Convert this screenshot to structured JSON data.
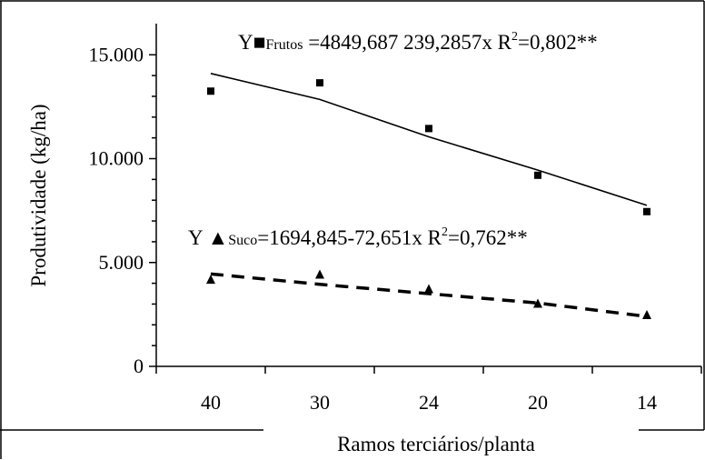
{
  "chart_data": {
    "type": "scatter",
    "xlabel": "Ramos terciários/planta",
    "ylabel": "Produtividade (kg/ha)",
    "categories": [
      "40",
      "30",
      "24",
      "20",
      "14"
    ],
    "yticks": [
      "0",
      "5.000",
      "10.000",
      "15.000"
    ],
    "ylim": [
      0,
      16500
    ],
    "grid": false,
    "series": [
      {
        "name": "Frutos",
        "marker": "square",
        "values": [
          13250,
          13650,
          11450,
          9200,
          7450
        ],
        "fit": [
          14100,
          12850,
          11050,
          9450,
          7750
        ],
        "fit_style": "solid"
      },
      {
        "name": "Suco",
        "marker": "triangle",
        "values": [
          4150,
          4400,
          3700,
          3000,
          2450
        ],
        "fit": [
          4450,
          3950,
          3500,
          3050,
          2400
        ],
        "fit_style": "dashed"
      }
    ],
    "equations": [
      {
        "prefix": "Y",
        "symbol": "■",
        "sub": "Frutos",
        "body": " =4849,687 239,2857x",
        "r": "  R",
        "sup": "2",
        "rest": "=0,802**"
      },
      {
        "prefix": "Y ",
        "symbol": "▲",
        "sub": "Suco",
        "body": "=1694,845-72,651x",
        "r": "   R",
        "sup": "2",
        "rest": "=0,762**"
      }
    ]
  },
  "colors": {
    "ink": "#000000",
    "background": "#ffffff"
  }
}
